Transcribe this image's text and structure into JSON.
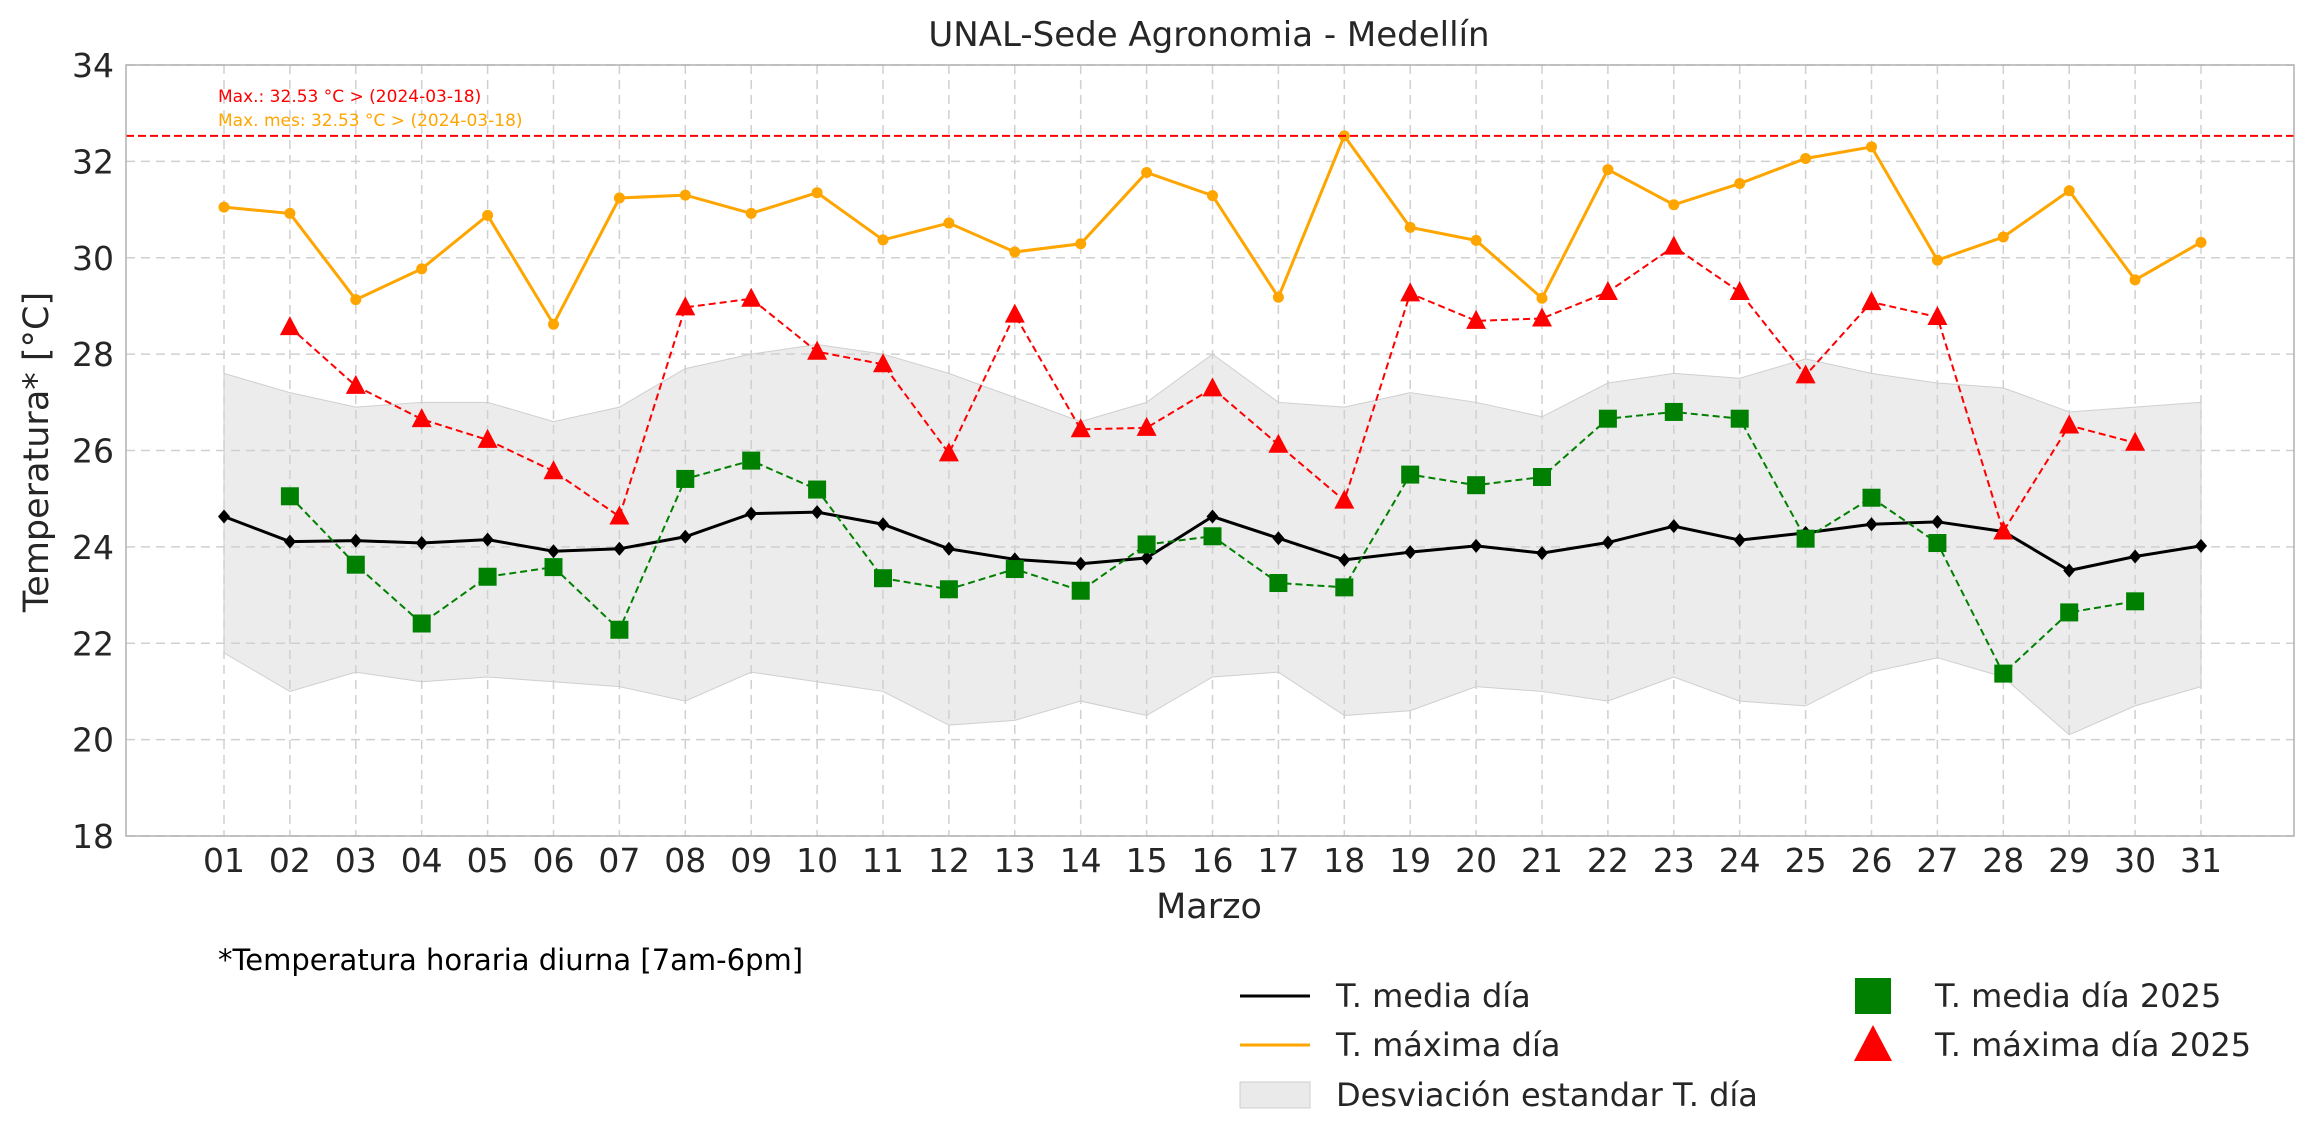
{
  "chart_data": {
    "type": "line",
    "title": "UNAL-Sede Agronomia - Medellín",
    "xlabel": "Marzo",
    "ylabel": "Temperatura* [°C]",
    "footnote": "*Temperatura horaria diurna [7am-6pm]",
    "ylim": [
      18,
      34
    ],
    "yticks": [
      18,
      20,
      22,
      24,
      26,
      28,
      30,
      32,
      34
    ],
    "grid": true,
    "legend_position": "bottom-right",
    "categories": [
      "01",
      "02",
      "03",
      "04",
      "05",
      "06",
      "07",
      "08",
      "09",
      "10",
      "11",
      "12",
      "13",
      "14",
      "15",
      "16",
      "17",
      "18",
      "19",
      "20",
      "21",
      "22",
      "23",
      "24",
      "25",
      "26",
      "27",
      "28",
      "29",
      "30",
      "31"
    ],
    "reference_line": {
      "value": 32.53,
      "color": "#ff0000"
    },
    "annotations": [
      {
        "text": "Max.: 32.53 °C  >  (2024-03-18)",
        "color": "#ff0000"
      },
      {
        "text": "Max. mes: 32.53 °C  >  (2024-03-18)",
        "color": "#ffa500"
      }
    ],
    "band": {
      "name": "Desviación estandar T. día",
      "color": "#d9d9d9",
      "upper": [
        27.6,
        27.2,
        26.9,
        27.0,
        27.0,
        26.6,
        26.9,
        27.7,
        28.0,
        28.2,
        28.0,
        27.6,
        27.1,
        26.6,
        27.0,
        28.0,
        27.0,
        26.9,
        27.2,
        27.0,
        26.7,
        27.4,
        27.6,
        27.5,
        27.9,
        27.6,
        27.4,
        27.3,
        26.8,
        26.9,
        27.0
      ],
      "lower": [
        21.8,
        21.0,
        21.4,
        21.2,
        21.3,
        21.2,
        21.1,
        20.8,
        21.4,
        21.2,
        21.0,
        20.3,
        20.4,
        20.8,
        20.5,
        21.3,
        21.4,
        20.5,
        20.6,
        21.1,
        21.0,
        20.8,
        21.3,
        20.8,
        20.7,
        21.4,
        21.7,
        21.3,
        20.1,
        20.7,
        21.1
      ]
    },
    "series": [
      {
        "name": "T. media día",
        "color": "#000000",
        "style": "solid",
        "marker": "diamond",
        "values": [
          24.63,
          24.11,
          24.13,
          24.08,
          24.15,
          23.91,
          23.96,
          24.21,
          24.69,
          24.72,
          24.47,
          23.96,
          23.74,
          23.65,
          23.77,
          24.63,
          24.18,
          23.73,
          23.89,
          24.02,
          23.87,
          24.09,
          24.43,
          24.14,
          24.29,
          24.47,
          24.52,
          24.32,
          23.51,
          23.8,
          24.02
        ]
      },
      {
        "name": "T. máxima día",
        "color": "#ffa500",
        "style": "solid",
        "marker": "circle",
        "values": [
          31.05,
          30.92,
          29.13,
          29.77,
          30.88,
          28.62,
          31.24,
          31.3,
          30.92,
          31.35,
          30.37,
          30.72,
          30.12,
          30.29,
          31.77,
          31.29,
          29.18,
          32.53,
          30.63,
          30.36,
          29.16,
          31.83,
          31.1,
          31.54,
          32.06,
          32.3,
          29.95,
          30.43,
          31.39,
          29.54,
          30.32
        ]
      },
      {
        "name": "T. media día 2025",
        "color": "#008000",
        "style": "dashed",
        "marker": "square",
        "values": [
          null,
          25.05,
          23.63,
          22.41,
          23.38,
          23.58,
          22.28,
          25.41,
          25.79,
          25.19,
          23.35,
          23.12,
          23.54,
          23.09,
          24.05,
          24.22,
          23.25,
          23.16,
          25.5,
          25.28,
          25.45,
          26.66,
          26.8,
          26.66,
          24.17,
          25.02,
          24.08,
          21.37,
          22.64,
          22.87,
          null
        ]
      },
      {
        "name": "T. máxima día 2025",
        "color": "#ff0000",
        "style": "dashed",
        "marker": "triangle",
        "values": [
          null,
          28.56,
          27.34,
          26.65,
          26.22,
          25.57,
          24.63,
          28.97,
          29.15,
          28.05,
          27.79,
          25.94,
          28.82,
          26.44,
          26.47,
          27.29,
          26.12,
          24.96,
          29.26,
          28.69,
          28.74,
          29.29,
          30.23,
          29.29,
          27.56,
          29.08,
          28.77,
          24.32,
          26.52,
          26.16,
          null
        ]
      }
    ]
  }
}
